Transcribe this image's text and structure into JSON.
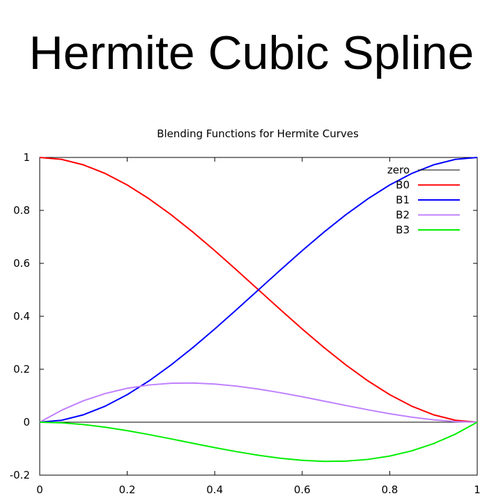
{
  "slide": {
    "title": "Hermite Cubic Spline"
  },
  "chart_data": {
    "type": "line",
    "title": "Blending Functions for Hermite Curves",
    "xlabel": "",
    "ylabel": "",
    "xlim": [
      0,
      1
    ],
    "ylim": [
      -0.2,
      1
    ],
    "x_ticks": [
      0,
      0.2,
      0.4,
      0.6,
      0.8,
      1
    ],
    "x_tick_labels": [
      "0",
      "0.2",
      "0.4",
      "0.6",
      "0.8",
      "1"
    ],
    "y_ticks": [
      -0.2,
      0,
      0.2,
      0.4,
      0.6,
      0.8,
      1
    ],
    "y_tick_labels": [
      "-0.2",
      "0",
      "0.2",
      "0.4",
      "0.6",
      "0.8",
      "1"
    ],
    "grid": false,
    "legend_position": "top-right",
    "x": [
      0,
      0.05,
      0.1,
      0.15,
      0.2,
      0.25,
      0.3,
      0.35,
      0.4,
      0.45,
      0.5,
      0.55,
      0.6,
      0.65,
      0.7,
      0.75,
      0.8,
      0.85,
      0.9,
      0.95,
      1
    ],
    "series": [
      {
        "name": "zero",
        "color": "#000000",
        "values": [
          0,
          0,
          0,
          0,
          0,
          0,
          0,
          0,
          0,
          0,
          0,
          0,
          0,
          0,
          0,
          0,
          0,
          0,
          0,
          0,
          0
        ]
      },
      {
        "name": "B0",
        "color": "#ff0000",
        "values": [
          1,
          0.99275,
          0.972,
          0.93925,
          0.896,
          0.84375,
          0.784,
          0.71825,
          0.648,
          0.57475,
          0.5,
          0.42525,
          0.352,
          0.28175,
          0.216,
          0.15625,
          0.104,
          0.06075,
          0.028,
          0.00725,
          0
        ]
      },
      {
        "name": "B1",
        "color": "#0000ff",
        "values": [
          0,
          0.00725,
          0.028,
          0.06075,
          0.104,
          0.15625,
          0.216,
          0.28175,
          0.352,
          0.42525,
          0.5,
          0.57475,
          0.648,
          0.71825,
          0.784,
          0.84375,
          0.896,
          0.93925,
          0.972,
          0.99275,
          1
        ]
      },
      {
        "name": "B2",
        "color": "#c080ff",
        "values": [
          0,
          0.04513,
          0.081,
          0.10838,
          0.128,
          0.14063,
          0.147,
          0.14788,
          0.144,
          0.13613,
          0.125,
          0.11138,
          0.096,
          0.07963,
          0.063,
          0.04688,
          0.032,
          0.01913,
          0.009,
          0.00238,
          0
        ]
      },
      {
        "name": "B3",
        "color": "#00ee00",
        "values": [
          0,
          -0.00238,
          -0.009,
          -0.01913,
          -0.032,
          -0.04688,
          -0.063,
          -0.07963,
          -0.096,
          -0.11138,
          -0.125,
          -0.13613,
          -0.144,
          -0.14788,
          -0.147,
          -0.14063,
          -0.128,
          -0.10838,
          -0.081,
          -0.04513,
          0
        ]
      }
    ]
  }
}
